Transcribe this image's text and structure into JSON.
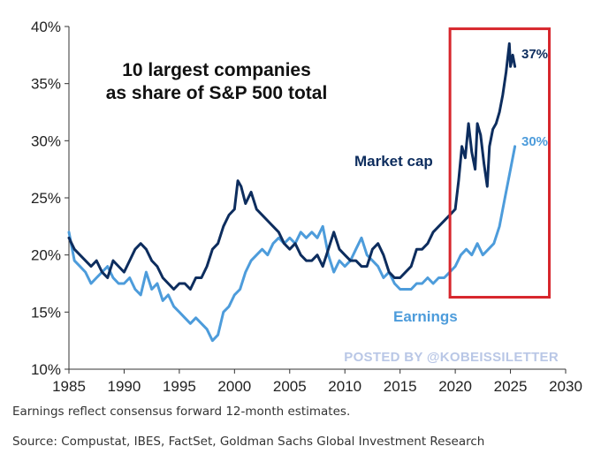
{
  "chart_data": {
    "type": "line",
    "title_lines": [
      "10 largest companies",
      "as share of S&P 500 total"
    ],
    "xlabel": "",
    "ylabel": "",
    "xlim": [
      1985,
      2030
    ],
    "ylim": [
      10,
      40
    ],
    "x_ticks": [
      1985,
      1990,
      1995,
      2000,
      2005,
      2010,
      2015,
      2020,
      2025,
      2030
    ],
    "y_ticks": [
      10,
      15,
      20,
      25,
      30,
      35,
      40
    ],
    "y_tick_labels": [
      "10%",
      "15%",
      "20%",
      "25%",
      "30%",
      "35%",
      "40%"
    ],
    "grid": false,
    "series": [
      {
        "name": "Market cap",
        "label": "Market cap",
        "color": "#0d2d5e",
        "end_label": "37%",
        "x": [
          1985.0,
          1985.5,
          1986.0,
          1986.5,
          1987.0,
          1987.5,
          1988.0,
          1988.5,
          1989.0,
          1989.5,
          1990.0,
          1990.5,
          1991.0,
          1991.5,
          1992.0,
          1992.5,
          1993.0,
          1993.5,
          1994.0,
          1994.5,
          1995.0,
          1995.5,
          1996.0,
          1996.5,
          1997.0,
          1997.5,
          1998.0,
          1998.5,
          1999.0,
          1999.5,
          2000.0,
          2000.3,
          2000.6,
          2001.0,
          2001.5,
          2002.0,
          2002.5,
          2003.0,
          2003.5,
          2004.0,
          2004.5,
          2005.0,
          2005.5,
          2006.0,
          2006.5,
          2007.0,
          2007.5,
          2008.0,
          2008.5,
          2009.0,
          2009.5,
          2010.0,
          2010.5,
          2011.0,
          2011.5,
          2012.0,
          2012.5,
          2013.0,
          2013.5,
          2014.0,
          2014.5,
          2015.0,
          2015.5,
          2016.0,
          2016.5,
          2017.0,
          2017.5,
          2018.0,
          2018.5,
          2019.0,
          2019.5,
          2020.0,
          2020.3,
          2020.6,
          2020.9,
          2021.2,
          2021.5,
          2021.8,
          2022.0,
          2022.3,
          2022.6,
          2022.9,
          2023.1,
          2023.4,
          2023.7,
          2024.0,
          2024.3,
          2024.6,
          2024.9,
          2025.0,
          2025.2,
          2025.4
        ],
        "values": [
          21.5,
          20.5,
          20.0,
          19.5,
          19.0,
          19.5,
          18.5,
          18.0,
          19.5,
          19.0,
          18.5,
          19.5,
          20.5,
          21.0,
          20.5,
          19.5,
          19.0,
          18.0,
          17.5,
          17.0,
          17.5,
          17.5,
          17.0,
          18.0,
          18.0,
          19.0,
          20.5,
          21.0,
          22.5,
          23.5,
          24.0,
          26.5,
          26.0,
          24.5,
          25.5,
          24.0,
          23.5,
          23.0,
          22.5,
          22.0,
          21.0,
          20.5,
          21.0,
          20.0,
          19.5,
          19.5,
          20.0,
          19.0,
          20.5,
          22.0,
          20.5,
          20.0,
          19.5,
          19.5,
          19.0,
          19.0,
          20.5,
          21.0,
          20.0,
          18.5,
          18.0,
          18.0,
          18.5,
          19.0,
          20.5,
          20.5,
          21.0,
          22.0,
          22.5,
          23.0,
          23.5,
          24.0,
          26.5,
          29.5,
          28.5,
          31.5,
          29.0,
          27.5,
          31.5,
          30.5,
          28.0,
          26.0,
          29.5,
          31.0,
          31.5,
          32.5,
          34.0,
          36.0,
          38.5,
          36.5,
          37.5,
          36.5
        ]
      },
      {
        "name": "Earnings",
        "label": "Earnings",
        "color": "#4d9cdb",
        "end_label": "30%",
        "x": [
          1985.0,
          1985.5,
          1986.0,
          1986.5,
          1987.0,
          1987.5,
          1988.0,
          1988.5,
          1989.0,
          1989.5,
          1990.0,
          1990.5,
          1991.0,
          1991.5,
          1992.0,
          1992.5,
          1993.0,
          1993.5,
          1994.0,
          1994.5,
          1995.0,
          1995.5,
          1996.0,
          1996.5,
          1997.0,
          1997.5,
          1998.0,
          1998.5,
          1999.0,
          1999.5,
          2000.0,
          2000.5,
          2001.0,
          2001.5,
          2002.0,
          2002.5,
          2003.0,
          2003.5,
          2004.0,
          2004.5,
          2005.0,
          2005.5,
          2006.0,
          2006.5,
          2007.0,
          2007.5,
          2008.0,
          2008.5,
          2009.0,
          2009.5,
          2010.0,
          2010.5,
          2011.0,
          2011.5,
          2012.0,
          2012.5,
          2013.0,
          2013.5,
          2014.0,
          2014.5,
          2015.0,
          2015.5,
          2016.0,
          2016.5,
          2017.0,
          2017.5,
          2018.0,
          2018.5,
          2019.0,
          2019.5,
          2020.0,
          2020.5,
          2021.0,
          2021.5,
          2022.0,
          2022.5,
          2023.0,
          2023.5,
          2024.0,
          2024.5,
          2025.0,
          2025.4
        ],
        "values": [
          22.0,
          19.5,
          19.0,
          18.5,
          17.5,
          18.0,
          18.5,
          19.0,
          18.0,
          17.5,
          17.5,
          18.0,
          17.0,
          16.5,
          18.5,
          17.0,
          17.5,
          16.0,
          16.5,
          15.5,
          15.0,
          14.5,
          14.0,
          14.5,
          14.0,
          13.5,
          12.5,
          13.0,
          15.0,
          15.5,
          16.5,
          17.0,
          18.5,
          19.5,
          20.0,
          20.5,
          20.0,
          21.0,
          21.5,
          21.0,
          21.5,
          21.0,
          22.0,
          21.5,
          22.0,
          21.5,
          22.5,
          20.0,
          18.5,
          19.5,
          19.0,
          19.5,
          20.5,
          21.5,
          20.0,
          19.5,
          19.0,
          18.0,
          18.5,
          17.5,
          17.0,
          17.0,
          17.0,
          17.5,
          17.5,
          18.0,
          17.5,
          18.0,
          18.0,
          18.5,
          19.0,
          20.0,
          20.5,
          20.0,
          21.0,
          20.0,
          20.5,
          21.0,
          22.5,
          25.0,
          27.5,
          29.5
        ]
      }
    ],
    "highlight_box": {
      "x_range": [
        2020,
        2029
      ],
      "y_range": [
        16.3,
        39.8
      ],
      "color": "#d7262c"
    },
    "watermark": "POSTED BY @KOBEISSILETTER"
  },
  "footnotes": {
    "note": "Earnings reflect consensus forward 12-month estimates.",
    "source": "Source: Compustat, IBES, FactSet, Goldman Sachs Global Investment Research"
  }
}
